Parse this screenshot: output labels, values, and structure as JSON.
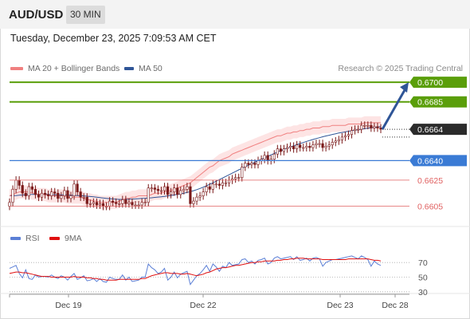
{
  "header": {
    "symbol": "AUD/USD",
    "timeframe": "30 MIN"
  },
  "timestamp": "Tuesday, December 23, 2025 7:09:53 AM CET",
  "legend": {
    "ma20": "MA 20 + Bollinger Bands",
    "ma50": "MA 50",
    "rsi": "RSI",
    "rsi_ma": "9MA"
  },
  "credit": "Research © 2025 Trading Central",
  "colors": {
    "candle": "#7a1a1a",
    "ma20": "#f08080",
    "ma50": "#2f5597",
    "bollinger_fill": "#fde4e4",
    "target_lines": "#5a9e0a",
    "pivot_line": "#3a7bd5",
    "support_lines": "#e06060",
    "last_price_tag": "#2b2b2b",
    "rsi_line": "#5b7fd6",
    "rsi_ma_line": "#e01010",
    "arrow": "#2f5597"
  },
  "chart_data": {
    "type": "candlestick",
    "x_ticks": [
      "Dec 19",
      "Dec 22",
      "Dec 23",
      "Dec 28"
    ],
    "y_min": 0.6595,
    "y_max": 0.6705,
    "last_price": 0.6664,
    "levels": [
      {
        "value": 0.67,
        "label": "0.6700",
        "kind": "target"
      },
      {
        "value": 0.6685,
        "label": "0.6685",
        "kind": "target"
      },
      {
        "value": 0.664,
        "label": "0.6640",
        "kind": "pivot"
      },
      {
        "value": 0.6625,
        "label": "0.6625",
        "kind": "support"
      },
      {
        "value": 0.6605,
        "label": "0.6605",
        "kind": "support"
      }
    ],
    "last_price_label": "0.6664",
    "closes": [
      0.6608,
      0.6618,
      0.6625,
      0.6621,
      0.6615,
      0.6613,
      0.662,
      0.6618,
      0.6614,
      0.6612,
      0.6615,
      0.6614,
      0.6613,
      0.6616,
      0.6615,
      0.6611,
      0.6613,
      0.6617,
      0.6611,
      0.6613,
      0.6622,
      0.6616,
      0.6612,
      0.6612,
      0.6607,
      0.6607,
      0.6608,
      0.6606,
      0.6607,
      0.6605,
      0.6605,
      0.6609,
      0.6608,
      0.6607,
      0.6607,
      0.661,
      0.6607,
      0.6608,
      0.6606,
      0.6606,
      0.6606,
      0.6608,
      0.6608,
      0.6619,
      0.6619,
      0.6618,
      0.6617,
      0.6617,
      0.662,
      0.6614,
      0.6616,
      0.6619,
      0.6614,
      0.6617,
      0.6618,
      0.662,
      0.6607,
      0.6609,
      0.6612,
      0.6613,
      0.6616,
      0.662,
      0.6618,
      0.6622,
      0.6622,
      0.6621,
      0.6623,
      0.6623,
      0.6625,
      0.6626,
      0.6627,
      0.6627,
      0.6635,
      0.6638,
      0.6637,
      0.6638,
      0.6637,
      0.664,
      0.6641,
      0.6644,
      0.664,
      0.6641,
      0.6645,
      0.6649,
      0.6647,
      0.6649,
      0.665,
      0.6651,
      0.6649,
      0.6652,
      0.665,
      0.665,
      0.6651,
      0.665,
      0.6652,
      0.6653,
      0.6653,
      0.665,
      0.6651,
      0.6652,
      0.6654,
      0.6655,
      0.6656,
      0.6658,
      0.6659,
      0.666,
      0.6663,
      0.6664,
      0.6664,
      0.6667,
      0.6667,
      0.6667,
      0.6665,
      0.6666,
      0.6665,
      0.6664
    ],
    "ma20": [
      0.6613,
      0.6614,
      0.6615,
      0.6616,
      0.6616,
      0.6616,
      0.6616,
      0.6615,
      0.6615,
      0.6614,
      0.6614,
      0.6614,
      0.6613,
      0.6613,
      0.6613,
      0.6613,
      0.6613,
      0.6613,
      0.6612,
      0.6612,
      0.6612,
      0.6612,
      0.6612,
      0.6611,
      0.661,
      0.661,
      0.6609,
      0.6609,
      0.6608,
      0.6608,
      0.6608,
      0.6608,
      0.6608,
      0.6608,
      0.6609,
      0.661,
      0.6611,
      0.6611,
      0.6612,
      0.6612,
      0.6613,
      0.6613,
      0.6613,
      0.6613,
      0.6614,
      0.6615,
      0.6615,
      0.6615,
      0.6616,
      0.6617,
      0.6617,
      0.6618,
      0.6619,
      0.662,
      0.6621,
      0.6622,
      0.6623,
      0.6625,
      0.6627,
      0.6629,
      0.6631,
      0.6633,
      0.6635,
      0.6636,
      0.6638,
      0.664,
      0.6641,
      0.6642,
      0.6643,
      0.6645,
      0.6646,
      0.6647,
      0.6648,
      0.6649,
      0.665,
      0.6651,
      0.6652,
      0.6653,
      0.6654,
      0.6655,
      0.6656,
      0.6657,
      0.6658,
      0.6659,
      0.6659,
      0.666,
      0.6661,
      0.6661,
      0.6662,
      0.6662,
      0.6663,
      0.6663,
      0.6664,
      0.6664,
      0.6665,
      0.6665,
      0.6665,
      0.6666,
      0.6666,
      0.6666,
      0.6667,
      0.6667,
      0.6667,
      0.6667,
      0.6667,
      0.6668,
      0.6668,
      0.6668,
      0.6668,
      0.6668,
      0.6669,
      0.6669,
      0.6669,
      0.6669,
      0.6669,
      0.6669
    ],
    "rsi": [
      62,
      64,
      66,
      55,
      49,
      60,
      48,
      47,
      53,
      50,
      51,
      51,
      50,
      53,
      50,
      48,
      52,
      50,
      46,
      51,
      55,
      47,
      49,
      52,
      45,
      46,
      48,
      44,
      48,
      44,
      43,
      50,
      48,
      47,
      47,
      53,
      46,
      50,
      44,
      45,
      46,
      50,
      50,
      68,
      63,
      60,
      55,
      57,
      62,
      46,
      50,
      57,
      49,
      54,
      56,
      58,
      40,
      46,
      52,
      55,
      60,
      66,
      58,
      68,
      64,
      58,
      65,
      63,
      70,
      66,
      67,
      68,
      74,
      75,
      70,
      72,
      68,
      73,
      74,
      76,
      68,
      70,
      76,
      78,
      75,
      76,
      77,
      78,
      74,
      78,
      73,
      74,
      76,
      72,
      76,
      77,
      75,
      65,
      70,
      72,
      74,
      74,
      75,
      76,
      77,
      78,
      79,
      77,
      75,
      79,
      77,
      74,
      65,
      72,
      68,
      66
    ],
    "rsi_ma": [
      55,
      56,
      57,
      57,
      56,
      56,
      55,
      54,
      53,
      52,
      51,
      51,
      51,
      50,
      50,
      50,
      50,
      50,
      50,
      50,
      51,
      50,
      50,
      50,
      49,
      49,
      48,
      48,
      47,
      47,
      46,
      46,
      46,
      46,
      47,
      47,
      47,
      47,
      47,
      47,
      47,
      48,
      48,
      50,
      52,
      53,
      54,
      55,
      56,
      56,
      55,
      55,
      55,
      54,
      54,
      55,
      54,
      53,
      52,
      53,
      54,
      56,
      57,
      59,
      61,
      62,
      63,
      63,
      64,
      65,
      66,
      66,
      67,
      68,
      69,
      70,
      70,
      71,
      71,
      72,
      72,
      72,
      72,
      73,
      73,
      74,
      74,
      75,
      75,
      76,
      76,
      76,
      75,
      75,
      75,
      75,
      75,
      74,
      74,
      74,
      74,
      74,
      74,
      74,
      74,
      75,
      75,
      75,
      75,
      75,
      75,
      75,
      74,
      73,
      73,
      72
    ],
    "rsi_levels": [
      70,
      50,
      30
    ],
    "rsi_labels": [
      "70",
      "50",
      "30"
    ],
    "forecast_target": 0.67
  }
}
